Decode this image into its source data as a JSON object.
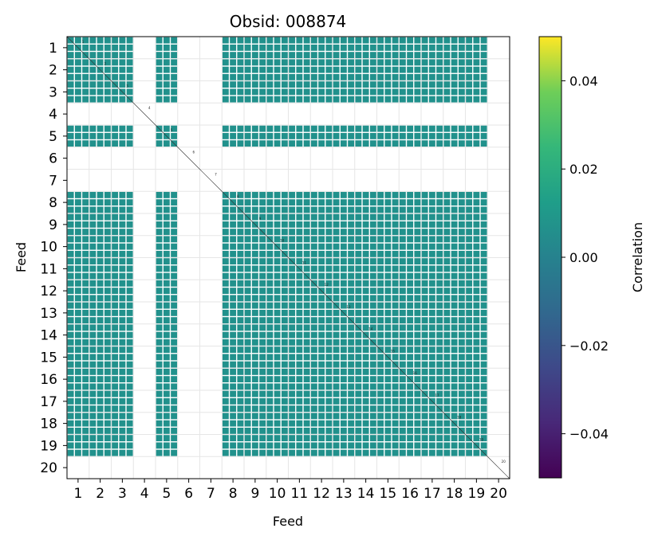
{
  "chart_data": {
    "type": "heatmap",
    "title": "Obsid: 008874",
    "xlabel": "Feed",
    "ylabel": "Feed",
    "x_ticks": [
      "1",
      "2",
      "3",
      "4",
      "5",
      "6",
      "7",
      "8",
      "9",
      "10",
      "11",
      "12",
      "13",
      "14",
      "15",
      "16",
      "17",
      "18",
      "19",
      "20"
    ],
    "y_ticks": [
      "1",
      "2",
      "3",
      "4",
      "5",
      "6",
      "7",
      "8",
      "9",
      "10",
      "11",
      "12",
      "13",
      "14",
      "15",
      "16",
      "17",
      "18",
      "19",
      "20"
    ],
    "active_feeds": [
      1,
      2,
      3,
      5,
      8,
      9,
      10,
      11,
      12,
      13,
      14,
      15,
      16,
      17,
      18,
      19
    ],
    "diagonal_feeds": [
      1,
      2,
      3,
      4,
      5,
      6,
      7,
      8,
      9,
      10,
      11,
      12,
      13,
      14,
      15,
      16,
      17,
      18,
      19,
      20
    ],
    "cell_value": 0.0,
    "colormap": "viridis",
    "colorbar": {
      "label": "Correlation",
      "range": [
        -0.05,
        0.05
      ],
      "ticks": [
        0.04,
        0.02,
        0.0,
        -0.02,
        -0.04
      ],
      "tick_labels": [
        "0.04",
        "0.02",
        "0.00",
        "−0.02",
        "−0.04"
      ]
    },
    "grid": true
  }
}
